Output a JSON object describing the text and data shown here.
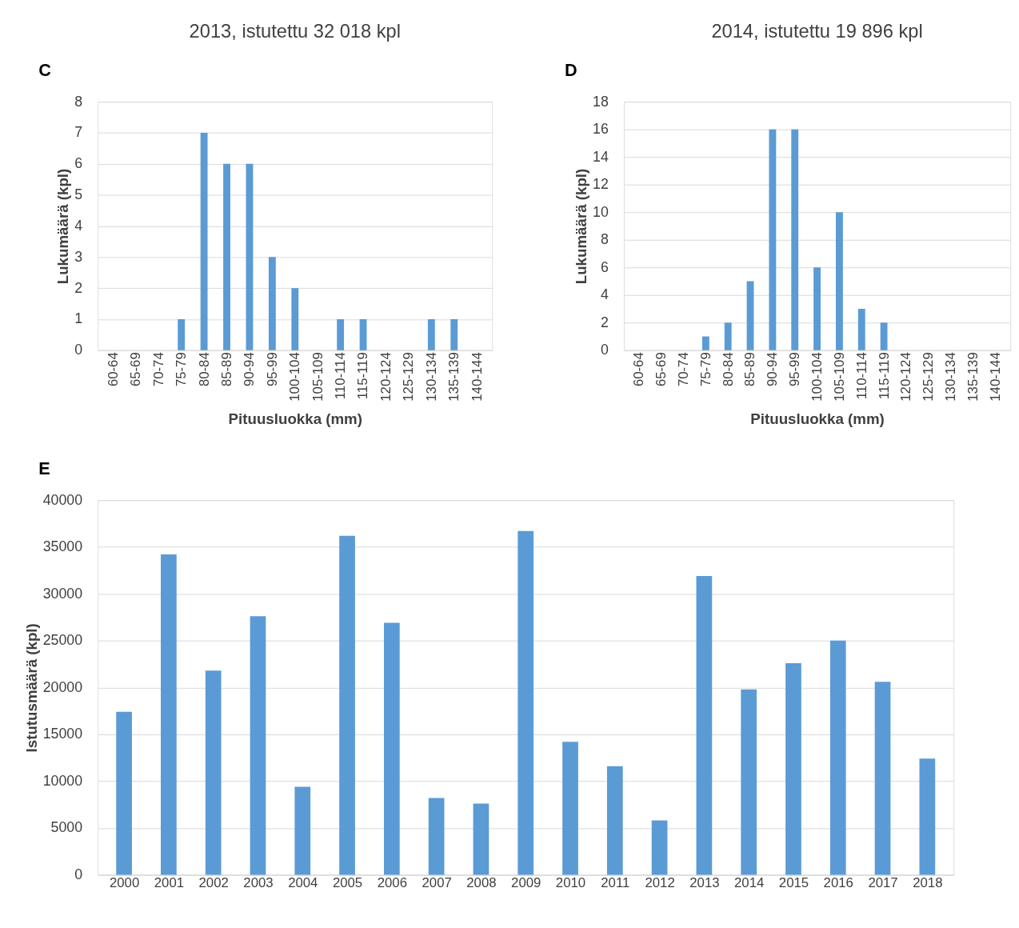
{
  "chart_data": [
    {
      "type": "bar",
      "title": "2013, istutettu 32 018 kpl",
      "xlabel": "Pituusluokka (mm)",
      "ylabel": "Lukumäärä (kpl)",
      "annotations": [
        "C"
      ],
      "color": "#5b9bd5",
      "grid": "y",
      "ylim": [
        0,
        8
      ],
      "yticks": [
        0,
        1,
        2,
        3,
        4,
        5,
        6,
        7,
        8
      ],
      "categories": [
        "60-64",
        "65-69",
        "70-74",
        "75-79",
        "80-84",
        "85-89",
        "90-94",
        "95-99",
        "100-104",
        "105-109",
        "110-114",
        "115-119",
        "120-124",
        "125-129",
        "130-134",
        "135-139",
        "140-144"
      ],
      "values": [
        0,
        0,
        0,
        1,
        7,
        6,
        6,
        3,
        2,
        0,
        1,
        1,
        0,
        0,
        1,
        1,
        0
      ]
    },
    {
      "type": "bar",
      "title": "2014, istutettu 19 896 kpl",
      "xlabel": "Pituusluokka (mm)",
      "ylabel": "Lukumäärä (kpl)",
      "annotations": [
        "D"
      ],
      "color": "#5b9bd5",
      "grid": "y",
      "ylim": [
        0,
        18
      ],
      "yticks": [
        0,
        2,
        4,
        6,
        8,
        10,
        12,
        14,
        16,
        18
      ],
      "categories": [
        "60-64",
        "65-69",
        "70-74",
        "75-79",
        "80-84",
        "85-89",
        "90-94",
        "95-99",
        "100-104",
        "105-109",
        "110-114",
        "115-119",
        "120-124",
        "125-129",
        "130-134",
        "135-139",
        "140-144"
      ],
      "values": [
        0,
        0,
        0,
        1,
        2,
        5,
        16,
        16,
        6,
        10,
        3,
        2,
        0,
        0,
        0,
        0,
        0
      ]
    },
    {
      "type": "bar",
      "ylabel": "Istutusmäärä (kpl)",
      "annotations": [
        "E"
      ],
      "color": "#5b9bd5",
      "grid": "y",
      "ylim": [
        0,
        40000
      ],
      "yticks": [
        0,
        5000,
        10000,
        15000,
        20000,
        25000,
        30000,
        35000,
        40000
      ],
      "categories": [
        "2000",
        "2001",
        "2002",
        "2003",
        "2004",
        "2005",
        "2006",
        "2007",
        "2008",
        "2009",
        "2010",
        "2011",
        "2012",
        "2013",
        "2014",
        "2015",
        "2016",
        "2017",
        "2018"
      ],
      "values": [
        17400,
        34200,
        21800,
        27600,
        9400,
        36200,
        26900,
        8200,
        7600,
        36700,
        14200,
        11600,
        5800,
        31900,
        19800,
        22600,
        25000,
        20600,
        12400
      ]
    }
  ]
}
